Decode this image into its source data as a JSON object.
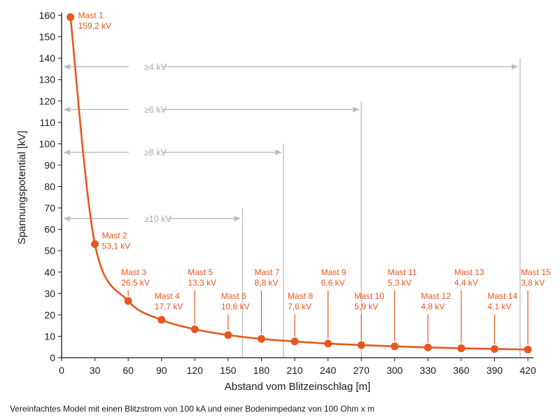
{
  "caption": "Vereinfachtes Model mit einen Blitzstrom von 100 kA und einer Bodenimpedanz von 100 Ohm x m",
  "colors": {
    "curve": "#e8571e",
    "reference": "#b7bcbf",
    "reference_text": "#a8adb0",
    "axis": "#1a1a1a"
  },
  "chart_data": {
    "type": "line",
    "title": "",
    "xlabel": "Abstand vom Blitzeinschlag [m]",
    "ylabel": "Spannungspotential  [kV]",
    "xlim": [
      0,
      425
    ],
    "ylim": [
      0,
      160
    ],
    "xticks": [
      0,
      30,
      60,
      90,
      120,
      150,
      180,
      210,
      240,
      270,
      300,
      330,
      360,
      390,
      420
    ],
    "yticks": [
      0,
      10,
      20,
      30,
      40,
      50,
      60,
      70,
      80,
      90,
      100,
      110,
      120,
      130,
      140,
      150,
      160
    ],
    "points": [
      {
        "x": 8,
        "y": 159.2,
        "name": "Mast 1",
        "value": "159,2 kV"
      },
      {
        "x": 30,
        "y": 53.1,
        "name": "Mast 2",
        "value": "53,1 kV"
      },
      {
        "x": 60,
        "y": 26.5,
        "name": "Mast 3",
        "value": "26,5 kV"
      },
      {
        "x": 90,
        "y": 17.7,
        "name": "Mast 4",
        "value": "17,7 kV"
      },
      {
        "x": 120,
        "y": 13.3,
        "name": "Mast 5",
        "value": "13,3 kV"
      },
      {
        "x": 150,
        "y": 10.6,
        "name": "Mast 6",
        "value": "10,6 kV"
      },
      {
        "x": 180,
        "y": 8.8,
        "name": "Mast 7",
        "value": "8,8 kV"
      },
      {
        "x": 210,
        "y": 7.6,
        "name": "Mast 8",
        "value": "7,6 kV"
      },
      {
        "x": 240,
        "y": 6.6,
        "name": "Mast 9",
        "value": "6,6 kV"
      },
      {
        "x": 270,
        "y": 5.9,
        "name": "Mast 10",
        "value": "5,9 kV"
      },
      {
        "x": 300,
        "y": 5.3,
        "name": "Mast 11",
        "value": "5,3 kV"
      },
      {
        "x": 330,
        "y": 4.8,
        "name": "Mast 12",
        "value": "4,8 kV"
      },
      {
        "x": 360,
        "y": 4.4,
        "name": "Mast 13",
        "value": "4,4 kV"
      },
      {
        "x": 390,
        "y": 4.1,
        "name": "Mast 14",
        "value": "4,1 kV"
      },
      {
        "x": 420,
        "y": 3.8,
        "name": "Mast 15",
        "value": "3,8 kV"
      }
    ],
    "reference_lines": [
      {
        "label": "≥4 kV",
        "x_end": 413,
        "y": 136,
        "line_top": 140
      },
      {
        "label": "≥6 kV",
        "x_end": 270,
        "y": 116,
        "line_top": 120
      },
      {
        "label": "≥8 kV",
        "x_end": 200,
        "y": 96,
        "line_top": 100
      },
      {
        "label": "≥10 kV",
        "x_end": 163,
        "y": 65,
        "line_top": 70
      }
    ],
    "grid": false,
    "legend": "none"
  }
}
